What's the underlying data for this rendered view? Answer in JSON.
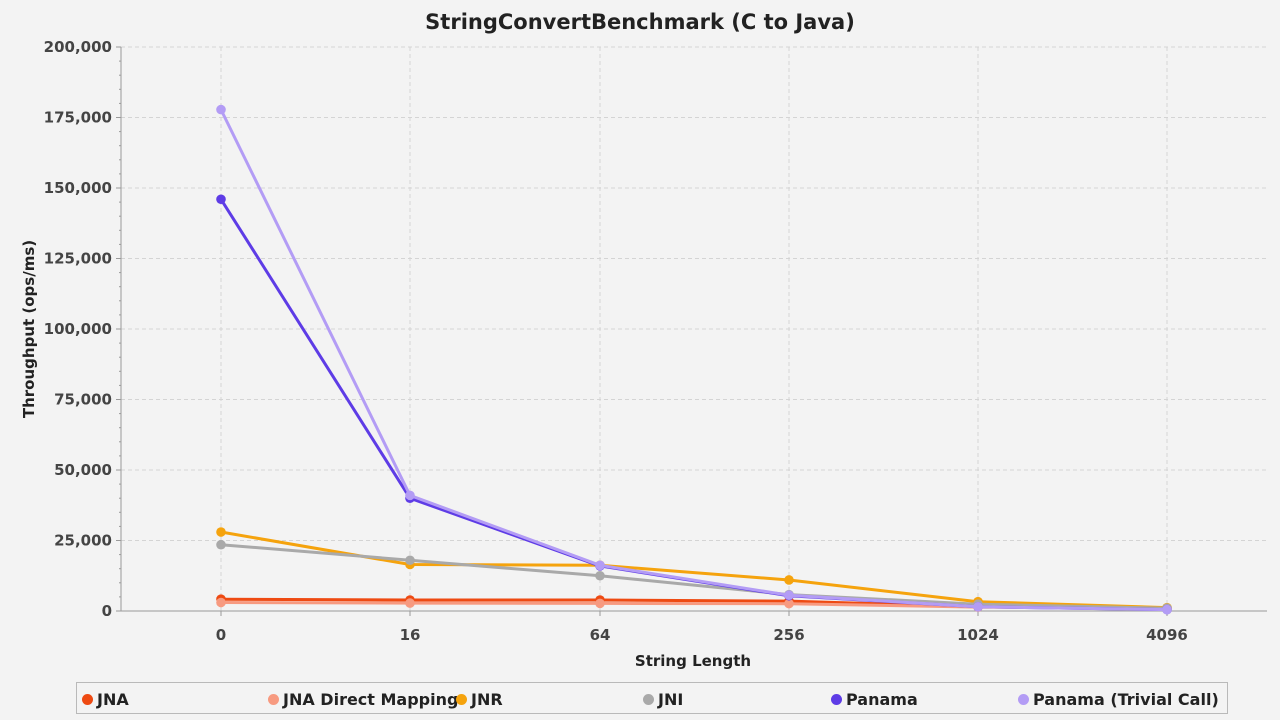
{
  "chart_data": {
    "type": "line",
    "title": "StringConvertBenchmark (C to Java)",
    "xlabel": "String Length",
    "ylabel": "Throughput (ops/ms)",
    "categories": [
      "0",
      "16",
      "64",
      "256",
      "1024",
      "4096"
    ],
    "ylim": [
      0,
      200000
    ],
    "yticks": [
      "0",
      "25,000",
      "50,000",
      "75,000",
      "100,000",
      "125,000",
      "150,000",
      "175,000",
      "200,000"
    ],
    "ytick_values": [
      0,
      25000,
      50000,
      75000,
      100000,
      125000,
      150000,
      175000,
      200000
    ],
    "grid": true,
    "legend_position": "bottom",
    "series": [
      {
        "name": "JNA",
        "color": "#ee4a12",
        "values": [
          4200,
          3900,
          3900,
          3500,
          1500,
          900
        ]
      },
      {
        "name": "JNA Direct Mapping",
        "color": "#f79a80",
        "values": [
          3000,
          2800,
          2700,
          2600,
          1400,
          900
        ]
      },
      {
        "name": "JNR",
        "color": "#f5a30d",
        "values": [
          28000,
          16500,
          16200,
          11000,
          3300,
          1200
        ]
      },
      {
        "name": "JNI",
        "color": "#a9a9a9",
        "values": [
          23500,
          18000,
          12500,
          5800,
          2400,
          1000
        ]
      },
      {
        "name": "Panama",
        "color": "#5e3ce6",
        "values": [
          146000,
          40000,
          16000,
          5400,
          1500,
          500
        ]
      },
      {
        "name": "Panama (Trivial Call)",
        "color": "#b39cf5",
        "values": [
          177800,
          41000,
          16200,
          5600,
          1500,
          500
        ]
      }
    ]
  }
}
